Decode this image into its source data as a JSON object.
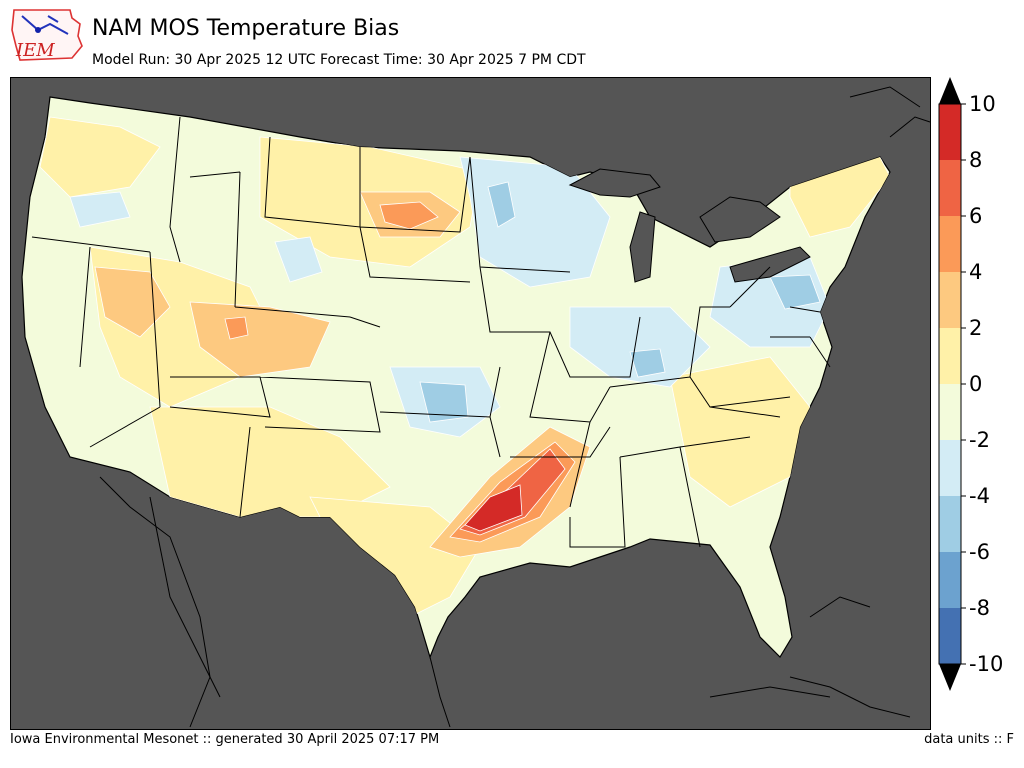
{
  "header": {
    "logo_text": "IEM",
    "title": "NAM MOS Temperature Bias",
    "subtitle": "Model Run: 30 Apr 2025 12 UTC Forecast Time: 30 Apr 2025 7 PM CDT"
  },
  "legend": {
    "labels": [
      "10",
      "8",
      "6",
      "4",
      "2",
      "0",
      "-2",
      "-4",
      "-6",
      "-8",
      "-10"
    ],
    "colors": [
      "#d42a27",
      "#ef6444",
      "#fb9a58",
      "#fdc980",
      "#fff1a8",
      "#f3fbdb",
      "#d3ecf5",
      "#9fcde4",
      "#6ca2cf",
      "#4471b2"
    ],
    "overflow_colors": [
      "#000000",
      "#000000"
    ]
  },
  "footer": {
    "left": "Iowa Environmental Mesonet :: generated 30 April 2025 07:17 PM",
    "right": "data units :: F"
  }
}
